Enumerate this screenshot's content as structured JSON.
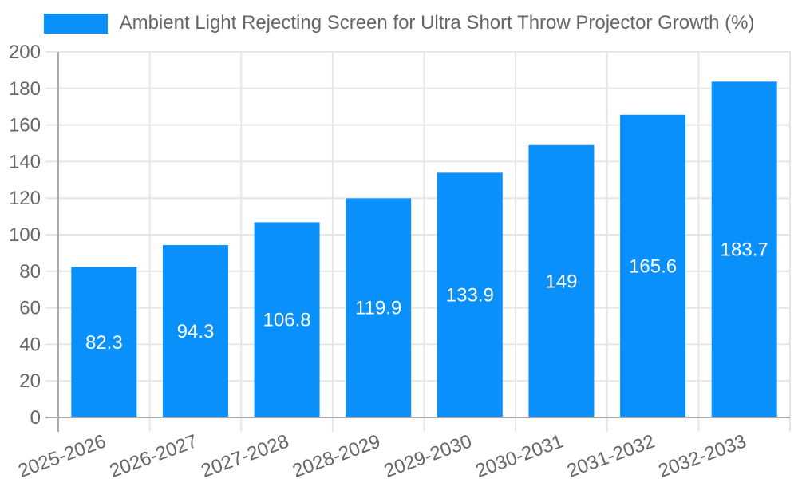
{
  "chart_data": {
    "type": "bar",
    "title": "",
    "series_name": "Ambient Light Rejecting Screen for Ultra Short Throw Projector Growth (%)",
    "categories": [
      "2025-2026",
      "2026-2027",
      "2027-2028",
      "2028-2029",
      "2029-2030",
      "2030-2031",
      "2031-2032",
      "2032-2033"
    ],
    "values": [
      82.3,
      94.3,
      106.8,
      119.9,
      133.9,
      149,
      165.6,
      183.7
    ],
    "xlabel": "",
    "ylabel": "",
    "ylim": [
      0,
      200
    ],
    "ytick_step": 20,
    "grid": true,
    "legend_position": "top",
    "bar_color": "#0a90fa",
    "grid_color": "#e6e6e6",
    "axis_color": "#ababab",
    "tick_color": "#666666",
    "data_label_color": "#ffffff"
  }
}
